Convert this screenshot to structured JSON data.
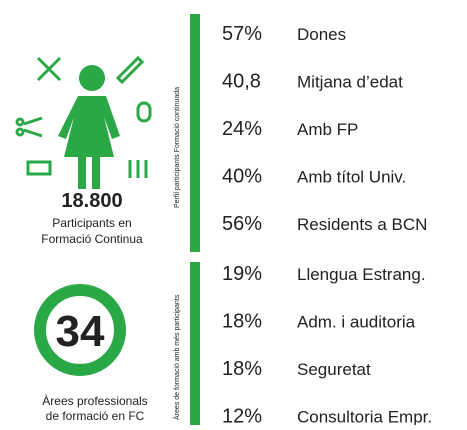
{
  "participants": {
    "count": "18.800",
    "caption": [
      "Participants en",
      "Formació Continua"
    ]
  },
  "areas": {
    "count": "34",
    "caption": [
      "Àrees professionals",
      "de formació en FC"
    ]
  },
  "profile": {
    "side_label": "Perfil participants Formació continuada",
    "rows": [
      [
        "57%",
        "Dones"
      ],
      [
        "40,8",
        "Mitjana d’edat"
      ],
      [
        "24%",
        "Amb FP"
      ],
      [
        "40%",
        "Amb títol Univ."
      ],
      [
        "56%",
        "Residents a BCN"
      ]
    ]
  },
  "top_areas": {
    "side_label": "Àrees de formació amb més participants",
    "rows": [
      [
        "19%",
        "Llengua Estrang."
      ],
      [
        "18%",
        "Adm. i auditoria"
      ],
      [
        "18%",
        "Seguretat"
      ],
      [
        "12%",
        "Consultoria Empr."
      ]
    ]
  }
}
